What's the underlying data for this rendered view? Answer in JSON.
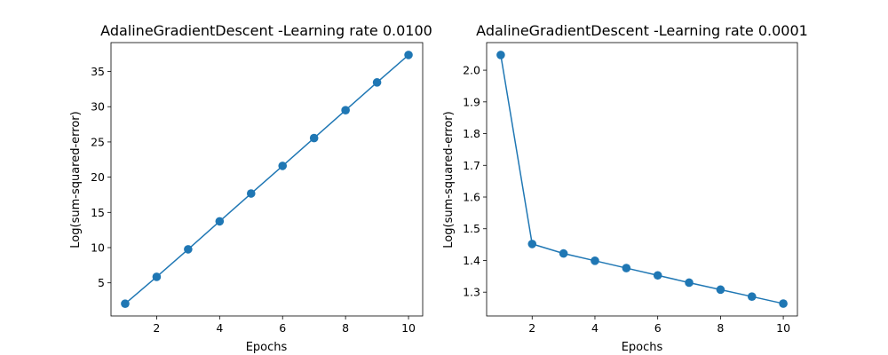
{
  "chart_data": [
    {
      "type": "line",
      "title": "AdalineGradientDescent -Learning rate 0.0100",
      "xlabel": "Epochs",
      "ylabel": "Log(sum-squared-error)",
      "x": [
        1,
        2,
        3,
        4,
        5,
        6,
        7,
        8,
        9,
        10
      ],
      "series": [
        {
          "values": [
            2.04,
            5.85,
            9.76,
            13.73,
            17.68,
            21.6,
            25.55,
            29.5,
            33.45,
            37.35
          ]
        }
      ],
      "xlim": [
        0.55,
        10.45
      ],
      "ylim": [
        0.3,
        39.1
      ],
      "xticks": [
        2,
        4,
        6,
        8,
        10
      ],
      "yticks": [
        5,
        10,
        15,
        20,
        25,
        30,
        35
      ],
      "xtick_labels": [
        "2",
        "4",
        "6",
        "8",
        "10"
      ],
      "ytick_labels": [
        "5",
        "10",
        "15",
        "20",
        "25",
        "30",
        "35"
      ],
      "grid": false,
      "legend": false,
      "color": "#1f77b4",
      "marker": "circle"
    },
    {
      "type": "line",
      "title": "AdalineGradientDescent -Learning rate 0.0001",
      "xlabel": "Epochs",
      "ylabel": "Log(sum-squared-error)",
      "x": [
        1,
        2,
        3,
        4,
        5,
        6,
        7,
        8,
        9,
        10
      ],
      "series": [
        {
          "values": [
            2.048,
            1.452,
            1.422,
            1.399,
            1.376,
            1.353,
            1.33,
            1.308,
            1.286,
            1.264
          ]
        }
      ],
      "xlim": [
        0.55,
        10.45
      ],
      "ylim": [
        1.225,
        2.087
      ],
      "xticks": [
        2,
        4,
        6,
        8,
        10
      ],
      "yticks": [
        1.3,
        1.4,
        1.5,
        1.6,
        1.7,
        1.8,
        1.9,
        2.0
      ],
      "xtick_labels": [
        "2",
        "4",
        "6",
        "8",
        "10"
      ],
      "ytick_labels": [
        "1.3",
        "1.4",
        "1.5",
        "1.6",
        "1.7",
        "1.8",
        "1.9",
        "2.0"
      ],
      "grid": false,
      "legend": false,
      "color": "#1f77b4",
      "marker": "circle"
    }
  ]
}
